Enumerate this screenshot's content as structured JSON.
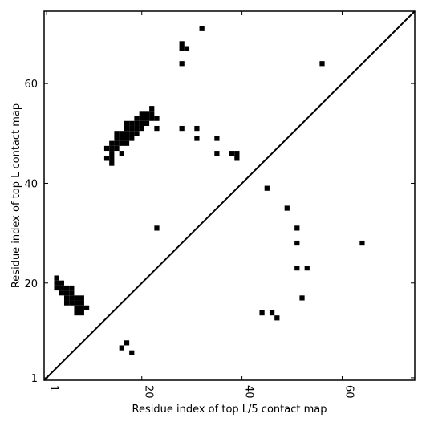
{
  "chart_data": {
    "type": "contact_map",
    "xlabel": "Residue index of top L/5 contact map",
    "ylabel": "Residue index of top L contact map",
    "color": "#000000",
    "xlim": [
      0.5,
      74.5
    ],
    "ylim": [
      0.5,
      74.5
    ],
    "xticks": [
      1,
      20,
      40,
      60
    ],
    "yticks": [
      1,
      20,
      40,
      60
    ],
    "x": [
      32,
      28,
      28,
      29,
      28,
      56,
      22,
      20,
      21,
      22,
      19,
      20,
      21,
      22,
      23,
      17,
      18,
      19,
      20,
      21,
      17,
      18,
      19,
      20,
      23,
      15,
      16,
      17,
      18,
      19,
      15,
      16,
      17,
      18,
      14,
      15,
      16,
      17,
      13,
      14,
      15,
      14,
      16,
      13,
      14,
      14,
      28,
      31,
      31,
      35,
      35,
      38,
      39,
      39,
      45,
      49,
      51,
      51,
      64,
      51,
      53,
      52,
      44,
      46,
      47,
      23,
      3,
      3,
      4,
      3,
      4,
      5,
      6,
      4,
      5,
      6,
      5,
      6,
      7,
      8,
      5,
      6,
      7,
      8,
      7,
      8,
      9,
      7,
      8,
      16,
      17,
      18
    ],
    "values": [
      71,
      68,
      67,
      67,
      64,
      64,
      55,
      54,
      54,
      54,
      53,
      53,
      53,
      53,
      53,
      52,
      52,
      52,
      52,
      52,
      51,
      51,
      51,
      51,
      51,
      50,
      50,
      50,
      50,
      50,
      49,
      49,
      49,
      49,
      48,
      48,
      48,
      48,
      47,
      47,
      47,
      46,
      46,
      45,
      45,
      44,
      51,
      51,
      49,
      49,
      46,
      46,
      46,
      45,
      39,
      35,
      31,
      28,
      28,
      23,
      23,
      17,
      14,
      14,
      13,
      31,
      21,
      20,
      20,
      19,
      19,
      19,
      19,
      18,
      18,
      18,
      17,
      17,
      17,
      17,
      16,
      16,
      16,
      16,
      15,
      15,
      15,
      14,
      14,
      7,
      8,
      6
    ]
  }
}
